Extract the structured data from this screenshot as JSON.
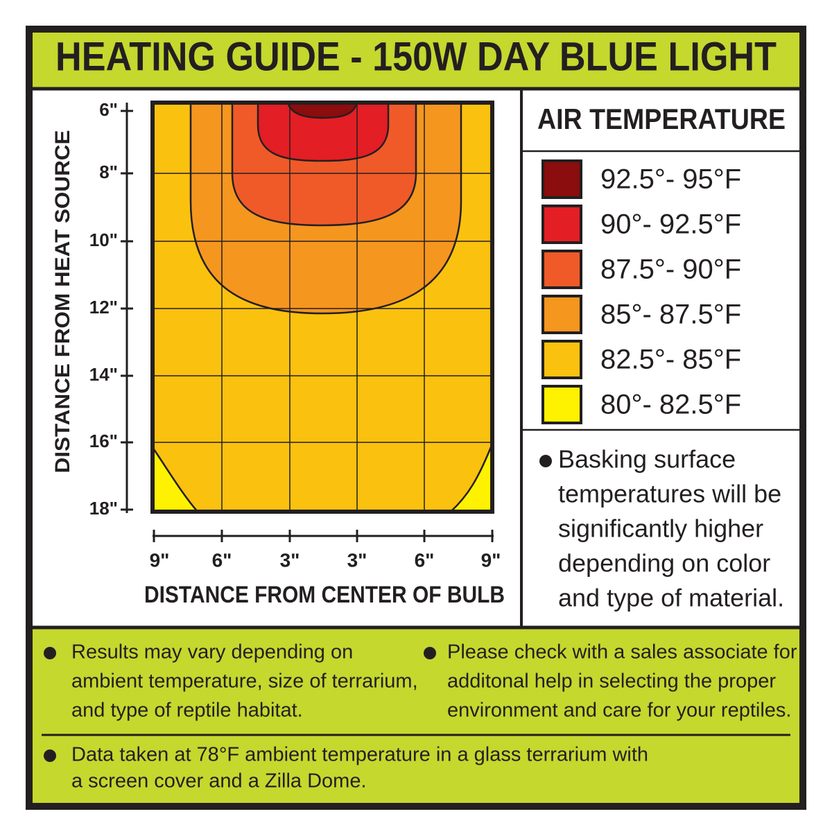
{
  "title": "HEATING GUIDE - 150W DAY BLUE LIGHT",
  "chart": {
    "y_axis_label": "DISTANCE FROM HEAT SOURCE",
    "y_ticks": [
      "6\"",
      "8\"",
      "10\"",
      "12\"",
      "14\"",
      "16\"",
      "18\""
    ],
    "x_ticks": [
      "9\"",
      "6\"",
      "3\"",
      "3\"",
      "6\"",
      "9\""
    ],
    "x_axis_label": "DISTANCE FROM CENTER OF BULB"
  },
  "legend": {
    "title": "AIR TEMPERATURE",
    "items": [
      {
        "label": "92.5°- 95°F",
        "color": "#8b0d0d"
      },
      {
        "label": "90°- 92.5°F",
        "color": "#e31e24"
      },
      {
        "label": "87.5°- 90°F",
        "color": "#ef5a28"
      },
      {
        "label": "85°- 87.5°F",
        "color": "#f5961f"
      },
      {
        "label": "82.5°- 85°F",
        "color": "#fbc10f"
      },
      {
        "label": "80°- 82.5°F",
        "color": "#fff200"
      }
    ]
  },
  "side_note": [
    "Basking surface",
    "temperatures will be",
    "significantly higher",
    "depending on color",
    "and type of material."
  ],
  "notes": [
    [
      "Results may vary depending on",
      "ambient temperature, size of terrarium,",
      "and type of reptile habitat."
    ],
    [
      "Please check with a sales associate for",
      "additonal help in selecting the proper",
      "environment and care for your reptiles."
    ],
    [
      "Data taken at 78°F ambient temperature in a glass terrarium with",
      "a screen cover and a Zilla Dome."
    ]
  ]
}
